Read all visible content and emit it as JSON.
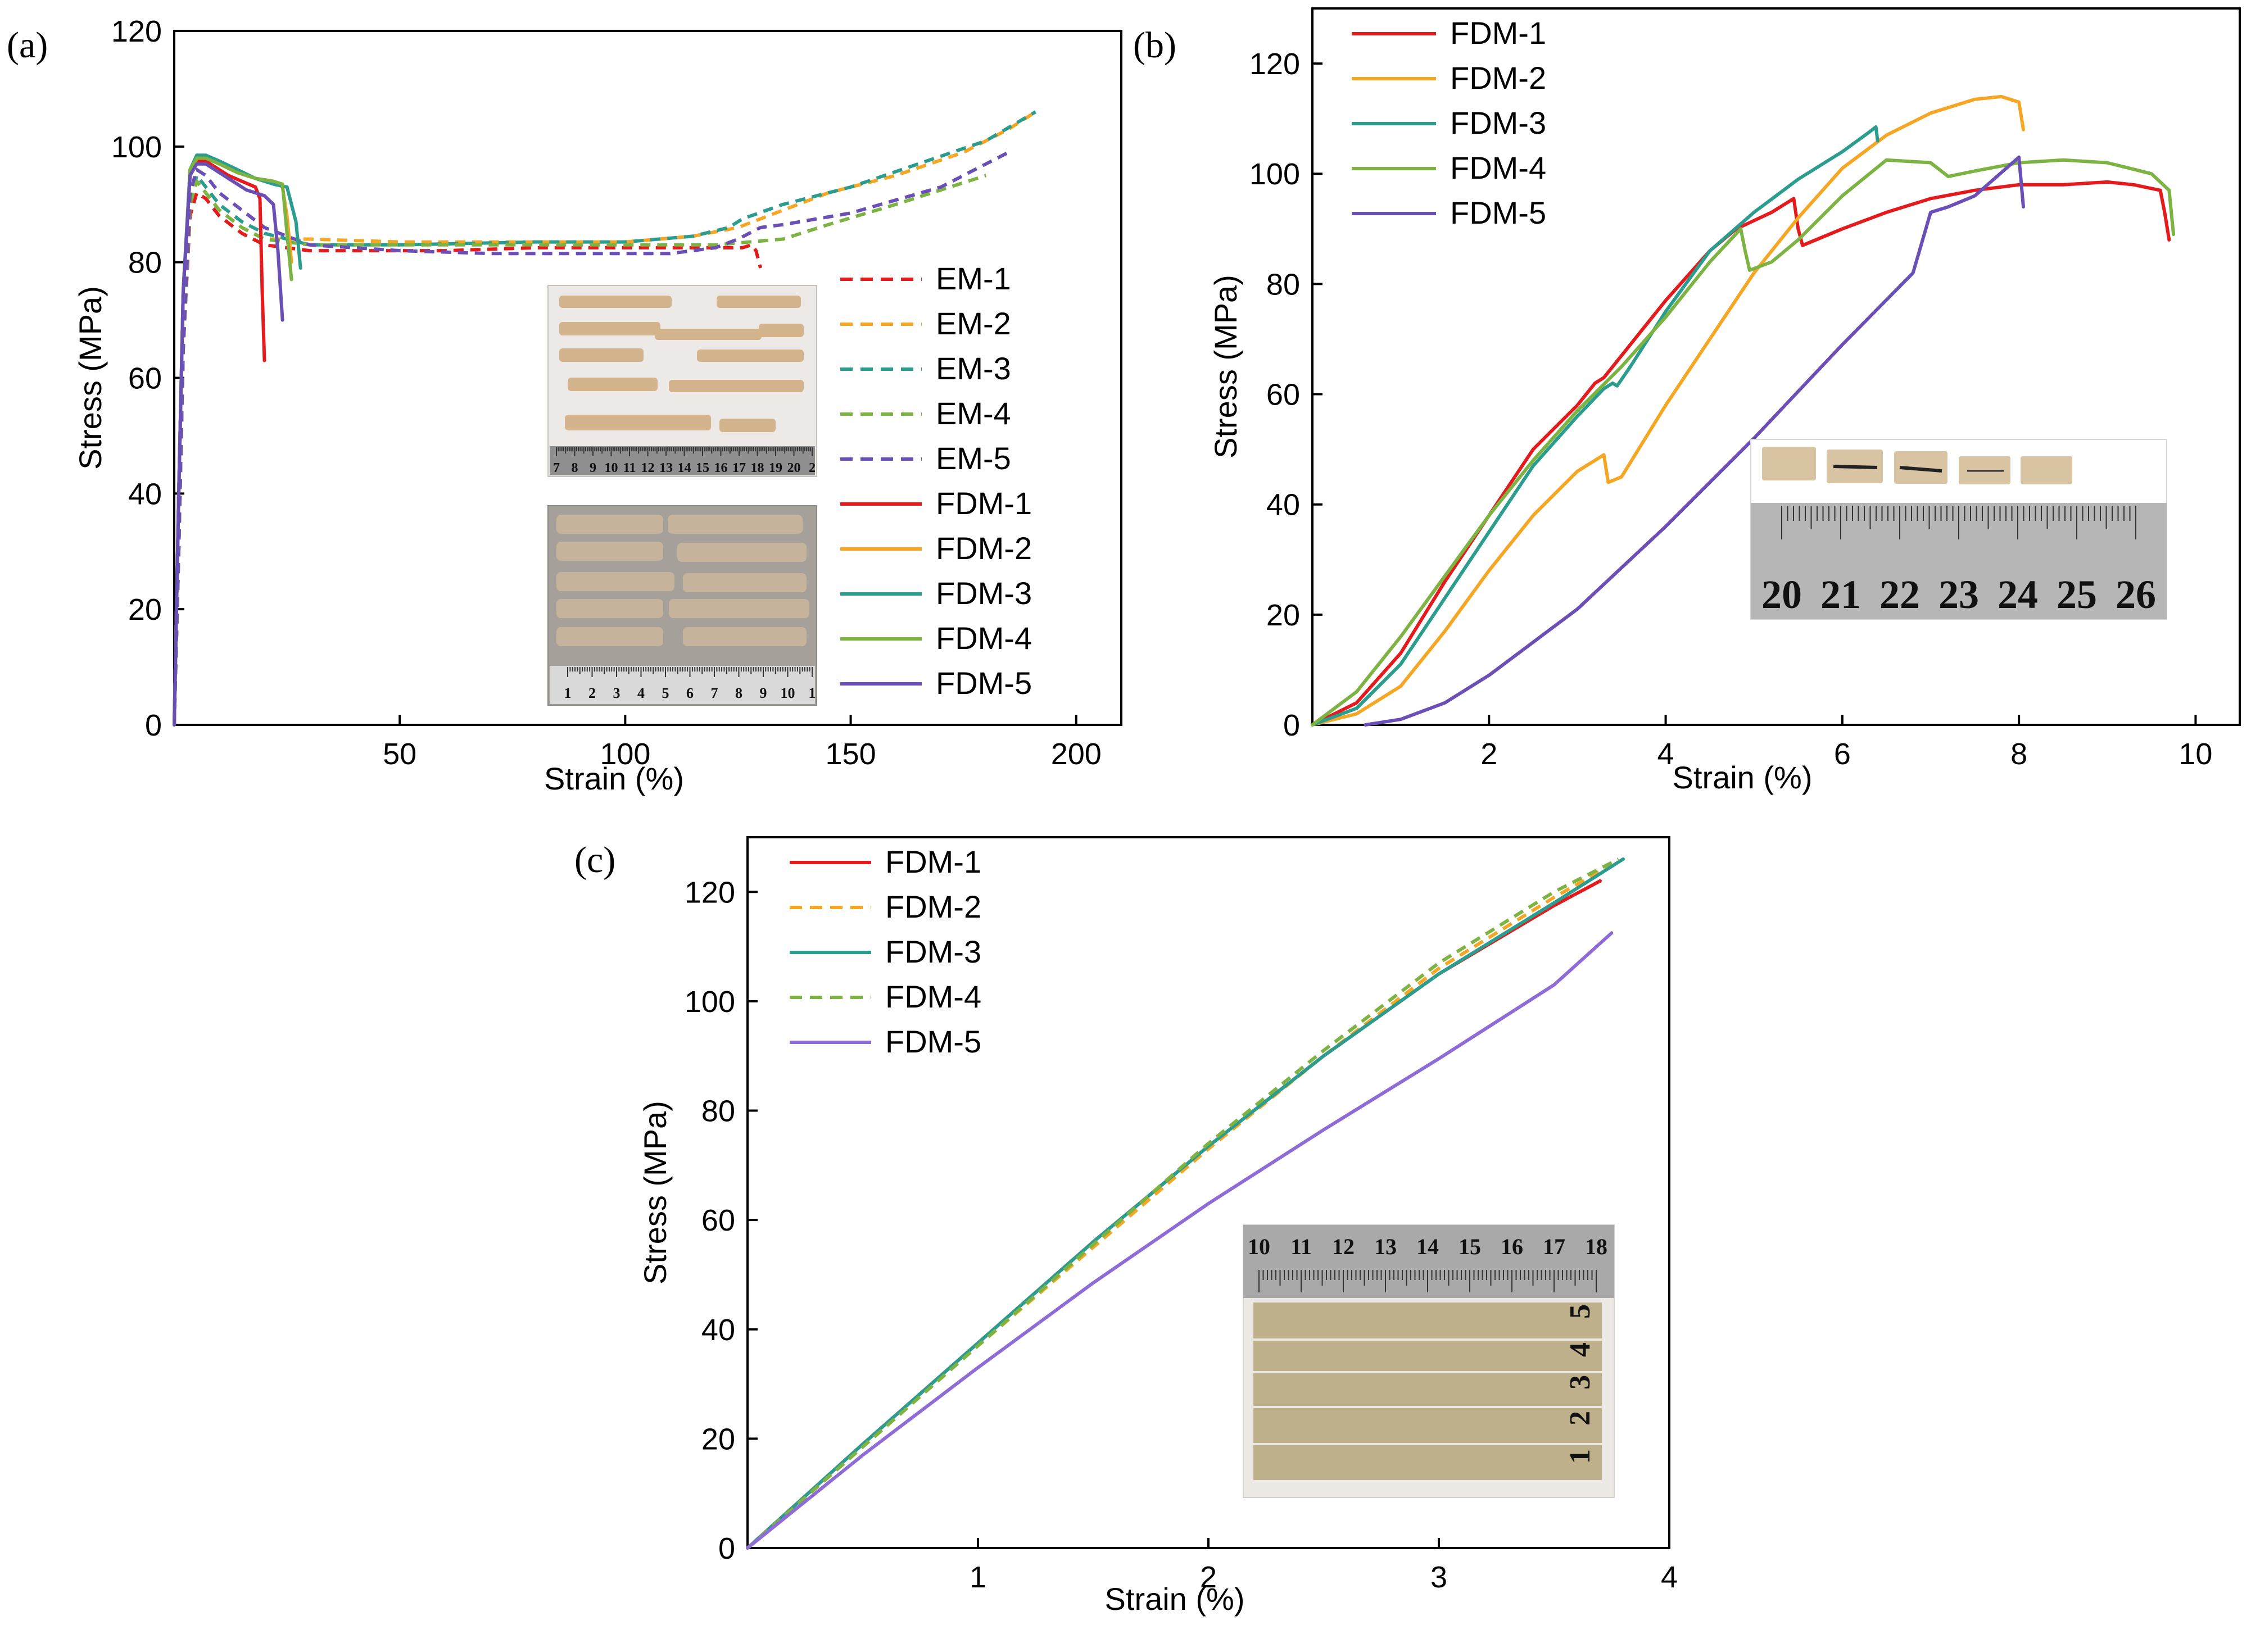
{
  "chart_data": [
    {
      "panel": "(a)",
      "type": "line",
      "xlabel": "Strain (%)",
      "ylabel": "Stress (MPa)",
      "xlim": [
        0,
        210
      ],
      "ylim": [
        0,
        120
      ],
      "xticks": [
        50,
        100,
        150,
        200
      ],
      "yticks": [
        0,
        20,
        40,
        60,
        80,
        100,
        120
      ],
      "grid": false,
      "legend_position": "right-center",
      "series": [
        {
          "name": "EM-1",
          "style": "dashed",
          "color": "#e41a1c",
          "x": [
            0,
            1,
            2,
            3.5,
            5,
            7,
            10,
            15,
            20,
            30,
            40,
            60,
            80,
            100,
            115,
            126,
            128,
            129,
            130
          ],
          "y": [
            0,
            30,
            65,
            88,
            92,
            91,
            88,
            85,
            83,
            82,
            82,
            82,
            82.5,
            82.5,
            82.5,
            82.5,
            83,
            82,
            79
          ]
        },
        {
          "name": "EM-2",
          "style": "dashed",
          "color": "#f5a623",
          "x": [
            0,
            1,
            2,
            3.5,
            5,
            7,
            10,
            15,
            20,
            30,
            50,
            80,
            100,
            115,
            125,
            135,
            145,
            160,
            175,
            185,
            191
          ],
          "y": [
            0,
            30,
            65,
            90,
            94,
            92,
            89,
            86,
            84,
            84,
            83.5,
            83.5,
            83.5,
            84.5,
            86,
            89,
            92,
            95,
            99,
            103,
            106
          ]
        },
        {
          "name": "EM-3",
          "style": "dashed",
          "color": "#2a9d8f",
          "x": [
            0,
            1,
            2,
            3.5,
            5,
            7,
            10,
            15,
            20,
            30,
            50,
            80,
            100,
            115,
            123,
            126,
            135,
            150,
            165,
            180,
            191
          ],
          "y": [
            0,
            30,
            65,
            90,
            95,
            93,
            90,
            87,
            85,
            83,
            83,
            83.5,
            83.5,
            84.5,
            86,
            87.5,
            90,
            93,
            97,
            101,
            106
          ]
        },
        {
          "name": "EM-4",
          "style": "dashed",
          "color": "#7cb342",
          "x": [
            0,
            1,
            2,
            3.5,
            5,
            7,
            10,
            15,
            20,
            30,
            50,
            80,
            100,
            120,
            135,
            145,
            160,
            172,
            180
          ],
          "y": [
            0,
            30,
            65,
            90,
            94,
            92,
            89,
            86,
            84,
            83,
            83,
            83,
            83,
            83,
            84,
            86.5,
            90,
            93,
            95
          ]
        },
        {
          "name": "EM-5",
          "style": "dashed",
          "color": "#6a4fb6",
          "x": [
            0,
            1,
            2,
            3.5,
            5,
            7,
            10,
            15,
            20,
            30,
            50,
            70,
            90,
            110,
            120,
            125,
            130,
            135,
            150,
            170,
            185
          ],
          "y": [
            0,
            30,
            65,
            92,
            96,
            95,
            92,
            89,
            86,
            83,
            82,
            81.5,
            81.5,
            81.5,
            82.5,
            84,
            86,
            86.5,
            88.5,
            93,
            99
          ]
        },
        {
          "name": "FDM-1",
          "style": "solid",
          "color": "#e41a1c",
          "x": [
            0,
            1,
            2,
            3.5,
            5,
            7,
            9,
            12,
            15,
            18,
            19,
            19.5,
            20
          ],
          "y": [
            0,
            40,
            75,
            95,
            97.5,
            97.5,
            96.5,
            95,
            94,
            93,
            91,
            75,
            63
          ]
        },
        {
          "name": "FDM-2",
          "style": "solid",
          "color": "#f5a623",
          "x": [
            0,
            1,
            2,
            3.5,
            5,
            7,
            10,
            14,
            18,
            22,
            24,
            25,
            26
          ],
          "y": [
            0,
            40,
            75,
            95,
            98,
            98,
            97,
            95.5,
            94.5,
            94,
            93,
            88,
            80
          ]
        },
        {
          "name": "FDM-3",
          "style": "solid",
          "color": "#2a9d8f",
          "x": [
            0,
            1,
            2,
            3.5,
            5,
            7,
            10,
            14,
            18,
            22,
            25,
            27,
            28
          ],
          "y": [
            0,
            40,
            75,
            96,
            98.5,
            98.5,
            97.5,
            96,
            94.5,
            93.5,
            93,
            87,
            79
          ]
        },
        {
          "name": "FDM-4",
          "style": "solid",
          "color": "#7cb342",
          "x": [
            0,
            1,
            2,
            3.5,
            5,
            7,
            10,
            14,
            18,
            22,
            24,
            25,
            26
          ],
          "y": [
            0,
            40,
            75,
            96,
            98,
            98,
            97,
            95.5,
            94.5,
            94,
            93.5,
            85,
            77
          ]
        },
        {
          "name": "FDM-5",
          "style": "solid",
          "color": "#6a4fb6",
          "x": [
            0,
            1,
            2,
            3.5,
            5,
            7,
            10,
            13,
            16,
            20,
            22,
            23,
            24
          ],
          "y": [
            0,
            40,
            75,
            95,
            97,
            97,
            95.5,
            94,
            92.5,
            91.5,
            90,
            82,
            70
          ]
        }
      ]
    },
    {
      "panel": "(b)",
      "type": "line",
      "xlabel": "Strain (%)",
      "ylabel": "Stress (MPa)",
      "xlim": [
        0,
        10.5
      ],
      "ylim": [
        0,
        130
      ],
      "xticks": [
        2,
        4,
        6,
        8,
        10
      ],
      "yticks": [
        0,
        20,
        40,
        60,
        80,
        100,
        120
      ],
      "grid": false,
      "legend_position": "top-left",
      "series": [
        {
          "name": "FDM-1",
          "style": "solid",
          "color": "#e41a1c",
          "x": [
            0,
            0.5,
            1,
            1.5,
            2,
            2.5,
            3,
            3.2,
            3.3,
            3.5,
            4,
            4.5,
            4.8,
            5.2,
            5.45,
            5.5,
            5.55,
            6,
            6.5,
            7,
            7.5,
            8,
            8.5,
            9,
            9.3,
            9.6,
            9.65,
            9.7
          ],
          "y": [
            0,
            4,
            13,
            26,
            38,
            50,
            58,
            62,
            63,
            67,
            77,
            86,
            90,
            93,
            95.5,
            90,
            87,
            90,
            93,
            95.5,
            97,
            98,
            98,
            98.5,
            98,
            97,
            93,
            88
          ]
        },
        {
          "name": "FDM-2",
          "style": "solid",
          "color": "#f5a623",
          "x": [
            0,
            0.5,
            1,
            1.5,
            2,
            2.5,
            3,
            3.3,
            3.35,
            3.5,
            4,
            4.5,
            5,
            5.5,
            6,
            6.5,
            7,
            7.5,
            7.8,
            8,
            8.05
          ],
          "y": [
            0,
            2,
            7,
            17,
            28,
            38,
            46,
            49,
            44,
            45,
            58,
            70,
            82,
            92,
            101,
            107,
            111,
            113.5,
            114,
            113,
            108
          ]
        },
        {
          "name": "FDM-3",
          "style": "solid",
          "color": "#2a9d8f",
          "x": [
            0,
            0.5,
            1,
            1.5,
            2,
            2.5,
            3,
            3.3,
            3.4,
            3.45,
            3.6,
            4,
            4.5,
            5,
            5.5,
            6,
            6.3,
            6.38,
            6.4
          ],
          "y": [
            0,
            3,
            11,
            23,
            35,
            47,
            56,
            61,
            62,
            61.5,
            65,
            75,
            86,
            93,
            99,
            104,
            107.5,
            108.5,
            106
          ]
        },
        {
          "name": "FDM-4",
          "style": "solid",
          "color": "#7cb342",
          "x": [
            0,
            0.5,
            1,
            1.5,
            2,
            2.5,
            3,
            3.5,
            4,
            4.5,
            4.85,
            4.9,
            4.95,
            5.2,
            5.5,
            6,
            6.5,
            7,
            7.2,
            7.5,
            8,
            8.5,
            9,
            9.5,
            9.7,
            9.75
          ],
          "y": [
            0,
            6,
            16,
            27,
            38,
            48,
            57,
            65,
            74,
            84,
            90,
            86,
            82.5,
            84,
            88,
            96,
            102.5,
            102,
            99.5,
            100.5,
            102,
            102.5,
            102,
            100,
            97,
            89
          ]
        },
        {
          "name": "FDM-5",
          "style": "solid",
          "color": "#6a4fb6",
          "x": [
            0.6,
            1,
            1.5,
            2,
            3,
            4,
            5,
            6,
            6.8,
            7,
            7.2,
            7.5,
            8,
            8.05
          ],
          "y": [
            0,
            1,
            4,
            9,
            21,
            36,
            52,
            69,
            82,
            93,
            94,
            96,
            103,
            94
          ]
        }
      ]
    },
    {
      "panel": "(c)",
      "type": "line",
      "xlabel": "Strain (%)",
      "ylabel": "Stress (MPa)",
      "xlim": [
        0,
        4
      ],
      "ylim": [
        0,
        130
      ],
      "xticks": [
        1,
        2,
        3,
        4
      ],
      "yticks": [
        0,
        20,
        40,
        60,
        80,
        100,
        120
      ],
      "grid": false,
      "legend_position": "top-left",
      "series": [
        {
          "name": "FDM-1",
          "style": "solid",
          "color": "#e41a1c",
          "x": [
            0,
            0.5,
            1,
            1.5,
            2,
            2.5,
            3,
            3.5,
            3.7
          ],
          "y": [
            0,
            19,
            37.5,
            56,
            73.5,
            90,
            105,
            117.5,
            122
          ]
        },
        {
          "name": "FDM-2",
          "style": "dashed",
          "color": "#f5a623",
          "x": [
            0,
            0.5,
            1,
            1.5,
            2,
            2.5,
            3,
            3.5,
            3.75
          ],
          "y": [
            0,
            18.5,
            37,
            55,
            73,
            90,
            106,
            119,
            125
          ]
        },
        {
          "name": "FDM-3",
          "style": "solid",
          "color": "#2a9d8f",
          "x": [
            0,
            0.5,
            1,
            1.5,
            2,
            2.5,
            3,
            3.5,
            3.8
          ],
          "y": [
            0,
            19,
            37.5,
            56,
            73.5,
            90,
            105,
            118,
            126
          ]
        },
        {
          "name": "FDM-4",
          "style": "dashed",
          "color": "#7cb342",
          "x": [
            0,
            0.5,
            1,
            1.5,
            2,
            2.5,
            3,
            3.5,
            3.78
          ],
          "y": [
            0,
            18.5,
            37,
            55.5,
            74,
            91,
            107,
            120,
            126
          ]
        },
        {
          "name": "FDM-5",
          "style": "solid",
          "color": "#8e6bd6",
          "x": [
            0,
            0.5,
            1,
            1.5,
            2,
            2.5,
            3,
            3.5,
            3.75
          ],
          "y": [
            0,
            17,
            33,
            48.5,
            63,
            76.5,
            89.5,
            103,
            112.5
          ]
        }
      ]
    }
  ],
  "insets": {
    "a_top_ruler": [
      "7",
      "8",
      "9",
      "10",
      "11",
      "12",
      "13",
      "14",
      "15",
      "16",
      "17",
      "18",
      "19",
      "20",
      "2"
    ],
    "a_bottom_ruler": [
      "1",
      "2",
      "3",
      "4",
      "5",
      "6",
      "7",
      "8",
      "9",
      "10",
      "1"
    ],
    "b_ruler": [
      "20",
      "21",
      "22",
      "23",
      "24",
      "25",
      "26"
    ],
    "c_ruler": [
      "10",
      "11",
      "12",
      "13",
      "14",
      "15",
      "16",
      "17",
      "18"
    ],
    "c_bar_marks": [
      "5",
      "4",
      "3",
      "2",
      "1"
    ]
  }
}
